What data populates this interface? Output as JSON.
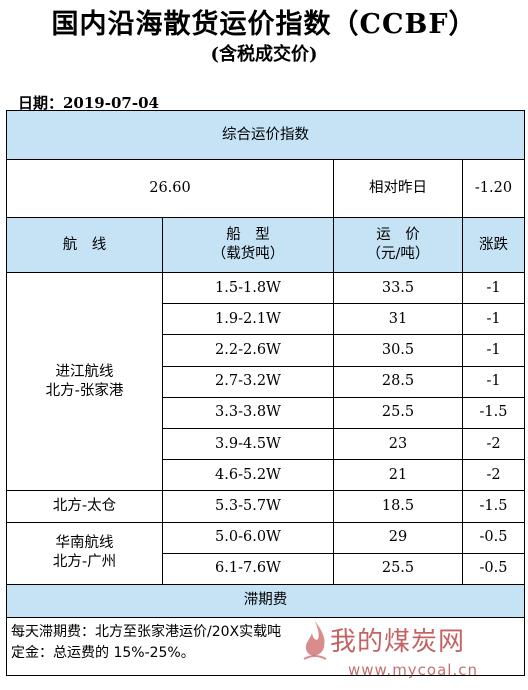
{
  "title": "国内沿海散货运价指数（CCBF）",
  "subtitle": "(含税成交价)",
  "date_label": "日期：2019-07-04",
  "composite": {
    "header": "综合运价指数",
    "value": "26.60",
    "compare_label": "相对昨日",
    "change": "-1.20"
  },
  "columns": {
    "route": "航　线",
    "ship_line1": "船　型",
    "ship_line2": "（载货吨）",
    "price_line1": "运　价",
    "price_line2": "（元/吨）",
    "change": "涨跌"
  },
  "groups": [
    {
      "route_line1": "进江航线",
      "route_line2": "北方-张家港",
      "rows": [
        {
          "ship": "1.5-1.8W",
          "price": "33.5",
          "change": "-1"
        },
        {
          "ship": "1.9-2.1W",
          "price": "31",
          "change": "-1"
        },
        {
          "ship": "2.2-2.6W",
          "price": "30.5",
          "change": "-1"
        },
        {
          "ship": "2.7-3.2W",
          "price": "28.5",
          "change": "-1"
        },
        {
          "ship": "3.3-3.8W",
          "price": "25.5",
          "change": "-1.5"
        },
        {
          "ship": "3.9-4.5W",
          "price": "23",
          "change": "-2"
        },
        {
          "ship": "4.6-5.2W",
          "price": "21",
          "change": "-2"
        }
      ]
    },
    {
      "route_line1": "北方-太仓",
      "route_line2": "",
      "rows": [
        {
          "ship": "5.3-5.7W",
          "price": "18.5",
          "change": "-1.5"
        }
      ]
    },
    {
      "route_line1": "华南航线",
      "route_line2": "北方-广州",
      "rows": [
        {
          "ship": "5.0-6.0W",
          "price": "29",
          "change": "-0.5"
        },
        {
          "ship": "6.1-7.6W",
          "price": "25.5",
          "change": "-0.5"
        }
      ]
    }
  ],
  "demurrage": {
    "header": "滞期费",
    "line1": "每天滞期费：北方至张家港运价/20X实载吨",
    "line2": "定金：总运费的 15%-25%。"
  },
  "watermark": {
    "text": "我的煤炭网",
    "url": "www.mycoal.cn",
    "color": "#b03030"
  }
}
